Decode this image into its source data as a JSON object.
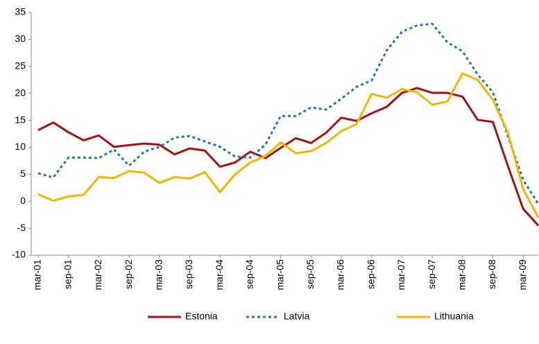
{
  "chart_data": {
    "type": "line",
    "categories": [
      "mar-01",
      null,
      "sep-01",
      null,
      "mar-02",
      null,
      "sep-02",
      null,
      "mar-03",
      null,
      "sep-03",
      null,
      "mar-04",
      null,
      "sep-04",
      null,
      "mar-05",
      null,
      "sep-05",
      null,
      "mar-06",
      null,
      "sep-06",
      null,
      "mar-07",
      null,
      "sep-07",
      null,
      "mar-08",
      null,
      "sep-08",
      null,
      "mar-09",
      null
    ],
    "series": [
      {
        "name": "Estonia",
        "color": "#a80f10",
        "line_style": "solid",
        "values": [
          13.2,
          14.6,
          12.8,
          11.3,
          12.2,
          10.1,
          10.4,
          10.7,
          10.5,
          8.7,
          9.8,
          9.4,
          6.4,
          7.2,
          9.2,
          8.0,
          9.9,
          11.7,
          10.8,
          12.7,
          15.5,
          14.9,
          16.3,
          17.5,
          20.1,
          21.0,
          20.1,
          20.1,
          19.4,
          15.1,
          14.7,
          6.5,
          -1.4,
          -4.5
        ]
      },
      {
        "name": "Latvia",
        "color": "#1a75bc",
        "line_style": "dotted",
        "values": [
          5.2,
          4.4,
          8.1,
          8.1,
          8.0,
          9.6,
          6.6,
          9.2,
          10.1,
          11.8,
          12.1,
          11.1,
          10.1,
          8.3,
          8.1,
          10.5,
          15.8,
          15.8,
          17.4,
          17.0,
          19.0,
          21.2,
          22.4,
          28.0,
          31.4,
          32.6,
          32.9,
          29.5,
          27.8,
          23.5,
          20.2,
          12.0,
          4.0,
          -0.5
        ]
      },
      {
        "name": "Lithuania",
        "color": "#f5b400",
        "line_style": "solid",
        "values": [
          1.3,
          0.1,
          0.9,
          1.2,
          4.5,
          4.3,
          5.6,
          5.3,
          3.4,
          4.5,
          4.2,
          5.4,
          1.7,
          5.0,
          7.2,
          8.4,
          10.9,
          8.9,
          9.3,
          10.8,
          13.0,
          14.3,
          19.9,
          19.2,
          20.8,
          20.2,
          17.9,
          18.5,
          23.7,
          22.5,
          18.8,
          12.7,
          2.2,
          -3.0
        ]
      }
    ],
    "ylim": [
      -10,
      35
    ],
    "yticks": [
      -10,
      -5,
      0,
      5,
      10,
      15,
      20,
      25,
      30,
      35
    ],
    "grid": false,
    "legend": "bottom"
  }
}
